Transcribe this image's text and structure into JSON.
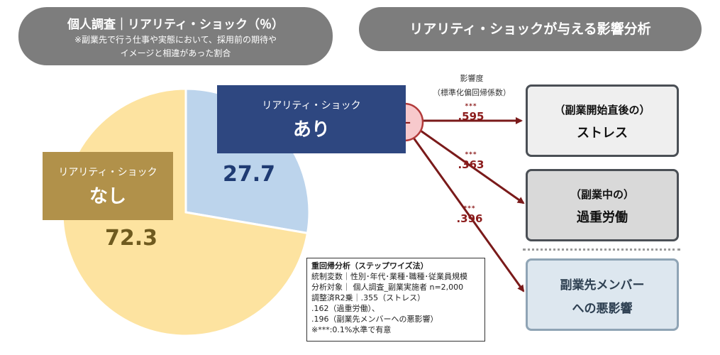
{
  "left_header": {
    "title": "個人調査｜リアリティ・ショック（％）",
    "subtitle1": "※副業先で行う仕事や実態において、採用前の期待や",
    "subtitle2": "イメージと相違があった割合"
  },
  "right_header": {
    "title": "リアリティ・ショックが与える影響分析"
  },
  "chart_data": {
    "type": "pie",
    "categories": [
      "リアリティ・ショック あり",
      "リアリティ・ショック なし"
    ],
    "values": [
      27.7,
      72.3
    ],
    "value_labels": [
      "27.7",
      "72.3"
    ],
    "colors": [
      "#bcd4ec",
      "#fde3a0"
    ]
  },
  "labels": {
    "ari_small": "リアリティ・ショック",
    "ari_big": "あり",
    "nashi_small": "リアリティ・ショック",
    "nashi_big": "なし"
  },
  "influence": {
    "line1": "影響度",
    "line2": "（標準化偏回帰係数）",
    "plus": "+"
  },
  "coefficients": [
    {
      "stars": "***",
      "value": ".595"
    },
    {
      "stars": "***",
      "value": ".363"
    },
    {
      "stars": "***",
      "value": ".396"
    }
  ],
  "outcomes": [
    {
      "line1": "（副業開始直後の）",
      "line2": "ストレス"
    },
    {
      "line1": "（副業中の）",
      "line2": "過重労働"
    },
    {
      "line1": "副業先メンバー",
      "line2": "への悪影響"
    }
  ],
  "note": {
    "title": "重回帰分析（ステップワイズ法）",
    "lines": [
      "統制変数｜性別･年代･業種･職種･従業員規模",
      "分析対象｜ 個人調査_副業実施者 n=2,000",
      "調整済R2乗｜.355（ストレス）",
      ".162（過重労働）、",
      ".196（副業先メンバーへの悪影響）",
      "※***:0.1%水準で有意"
    ]
  },
  "colors": {
    "arrow": "#7a1a1a",
    "ari_box": "#2e4780",
    "nashi_box": "#b1914a"
  }
}
